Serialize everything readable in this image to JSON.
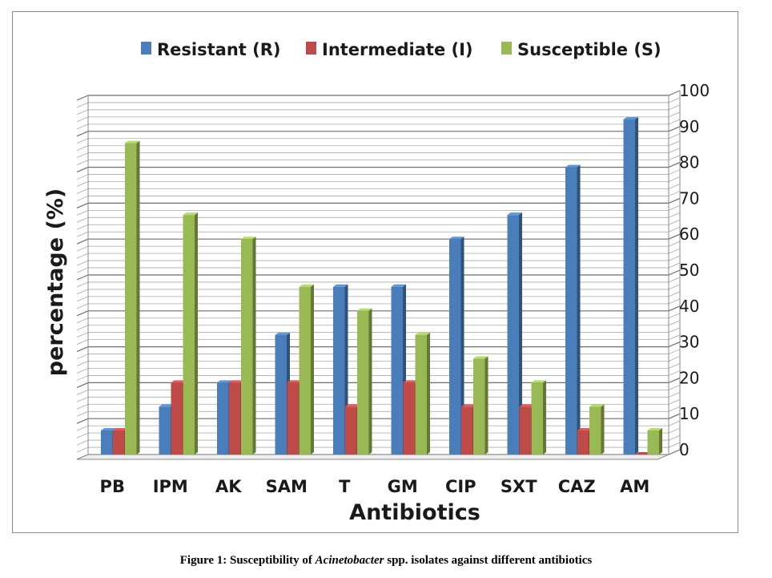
{
  "chart_data": {
    "type": "bar",
    "categories": [
      "PB",
      "IPM",
      "AK",
      "SAM",
      "T",
      "GM",
      "CIP",
      "SXT",
      "CAZ",
      "AM"
    ],
    "series": [
      {
        "name": "Resistant (R)",
        "color": "#4a7ebb",
        "values": [
          6.7,
          13.3,
          20,
          33.3,
          46.7,
          46.7,
          60,
          66.7,
          80,
          93.3
        ]
      },
      {
        "name": "Intermediate (I)",
        "color": "#be4b48",
        "values": [
          6.7,
          20,
          20,
          20,
          13.3,
          20,
          13.3,
          13.3,
          6.7,
          0
        ]
      },
      {
        "name": "Susceptible (S)",
        "color": "#98b954",
        "values": [
          86.7,
          66.7,
          60,
          46.7,
          40,
          33.3,
          26.7,
          20,
          13.3,
          6.7
        ]
      }
    ],
    "xlabel": "Antibiotics",
    "ylabel": "percentage (%)",
    "ylim": [
      0,
      100
    ],
    "yticks": [
      "0",
      "10",
      "20",
      "30",
      "40",
      "50",
      "60",
      "70",
      "80",
      "90",
      "100"
    ],
    "legend_position": "top",
    "grid": true
  },
  "caption": {
    "prefix": "Figure 1: Susceptibility of ",
    "italic": "Acinetobacter",
    "suffix": " spp. isolates against different antibiotics"
  }
}
